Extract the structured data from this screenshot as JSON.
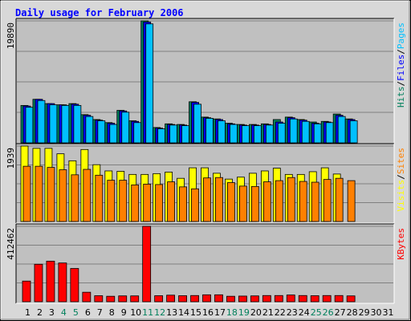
{
  "chart_data": {
    "type": "bar",
    "title": "Daily usage for February 2006",
    "categories": [
      "1",
      "2",
      "3",
      "4",
      "5",
      "6",
      "7",
      "8",
      "9",
      "10",
      "11",
      "12",
      "13",
      "14",
      "15",
      "16",
      "17",
      "18",
      "19",
      "20",
      "21",
      "22",
      "23",
      "24",
      "25",
      "26",
      "27",
      "28",
      "29",
      "30",
      "31"
    ],
    "weekend_days": [
      "4",
      "5",
      "11",
      "12",
      "18",
      "19",
      "25",
      "26"
    ],
    "panels": [
      {
        "id": "pages_files_hits",
        "ymax_label": "19890",
        "ymax": 19890,
        "right_labels": [
          {
            "text": "Hits",
            "color": "#00805c"
          },
          {
            "text": "/",
            "color": "#000000"
          },
          {
            "text": "Files",
            "color": "#0000ff"
          },
          {
            "text": "/",
            "color": "#000000"
          },
          {
            "text": "Pages",
            "color": "#00c0ff"
          }
        ],
        "series": [
          {
            "name": "Hits",
            "color": "#00805c",
            "values": [
              6100,
              7100,
              6400,
              6200,
              6400,
              4600,
              3800,
              3300,
              5300,
              3600,
              19890,
              2500,
              3100,
              3000,
              6700,
              4200,
              3900,
              3200,
              3000,
              3000,
              3100,
              3800,
              4200,
              3800,
              3400,
              3500,
              4700,
              3900,
              null,
              null,
              null
            ]
          },
          {
            "name": "Files",
            "color": "#0000ff",
            "values": [
              6000,
              7100,
              6400,
              6200,
              6300,
              4500,
              3700,
              3200,
              5200,
              3500,
              19700,
              2400,
              3000,
              2900,
              6600,
              4100,
              3800,
              3100,
              2900,
              2900,
              3000,
              3400,
              4100,
              3700,
              3200,
              3400,
              4500,
              3800,
              null,
              null,
              null
            ]
          },
          {
            "name": "Pages",
            "color": "#00c0ff",
            "values": [
              5800,
              6900,
              6200,
              6100,
              6100,
              4300,
              3600,
              3000,
              5000,
              3300,
              19400,
              2300,
              2900,
              2800,
              6300,
              4000,
              3600,
              3000,
              2800,
              2800,
              2900,
              3200,
              3900,
              3500,
              3100,
              3300,
              4300,
              3600,
              null,
              null,
              null
            ]
          }
        ]
      },
      {
        "id": "sites_visits",
        "ymax_label": "1939",
        "ymax": 1939,
        "right_labels": [
          {
            "text": "Visits",
            "color": "#ffff00"
          },
          {
            "text": "/",
            "color": "#000000"
          },
          {
            "text": "Sites",
            "color": "#ff8000"
          }
        ],
        "series": [
          {
            "name": "Visits",
            "color": "#ffff00",
            "values": [
              1939,
              1880,
              1880,
              1740,
              1560,
              1850,
              1460,
              1300,
              1290,
              1210,
              1210,
              1230,
              1270,
              1110,
              1380,
              1380,
              1240,
              1090,
              1140,
              1240,
              1300,
              1370,
              1210,
              1210,
              1280,
              1380,
              1220,
              null,
              null,
              null,
              null
            ]
          },
          {
            "name": "Sites",
            "color": "#ff8000",
            "values": [
              1420,
              1420,
              1390,
              1330,
              1200,
              1340,
              1190,
              1060,
              1060,
              940,
              960,
              950,
              1020,
              890,
              840,
              1120,
              1130,
              1000,
              910,
              900,
              1020,
              1050,
              1130,
              1030,
              1010,
              1080,
              1110,
              1050,
              null,
              null,
              null
            ]
          }
        ]
      },
      {
        "id": "kbytes",
        "ymax_label": "412462",
        "ymax": 412462,
        "right_labels": [
          {
            "text": "KBytes",
            "color": "#ff0000"
          }
        ],
        "series": [
          {
            "name": "KBytes",
            "color": "#ff0000",
            "values": [
              113000,
              205000,
              222000,
              212000,
              182000,
              52000,
              33000,
              30000,
              32000,
              32000,
              412462,
              33000,
              36000,
              33000,
              34000,
              38000,
              38000,
              30000,
              31000,
              32000,
              34000,
              34000,
              37000,
              34000,
              33000,
              34000,
              34000,
              32000,
              null,
              null,
              null
            ]
          }
        ]
      }
    ],
    "grid": true,
    "background": "#c0c0c0",
    "frame_color": "#d8d8d8",
    "title_color": "#0000ff",
    "axis_label_color_weekday": "#000000",
    "axis_label_color_weekend": "#00805c"
  }
}
